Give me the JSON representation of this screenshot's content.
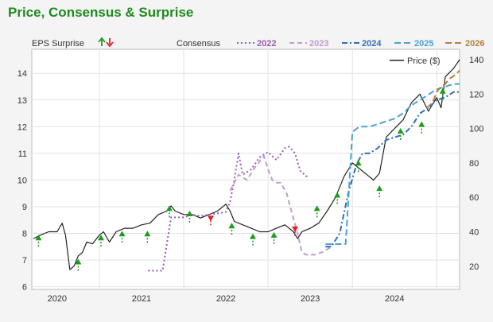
{
  "chart_data": {
    "type": "line",
    "title": "Price, Consensus & Surprise",
    "left_axis": {
      "label": "EPS Surprise",
      "ticks": [
        6,
        7,
        8,
        9,
        10,
        11,
        12,
        13,
        14
      ],
      "range": [
        5.9,
        14.9
      ]
    },
    "right_axis": {
      "ticks": [
        20,
        40,
        60,
        80,
        100,
        120,
        140
      ],
      "range": [
        6.5,
        146
      ]
    },
    "x_axis": {
      "ticks": [
        "2020",
        "2021",
        "2022",
        "2023",
        "2024"
      ],
      "range": [
        2019.7,
        2024.77
      ]
    },
    "legend": {
      "surprise_label": "EPS Surprise",
      "consensus_label": "Consensus",
      "price_label": "Price ($)",
      "consensus_years": [
        "2022",
        "2023",
        "2024",
        "2025",
        "2026"
      ]
    },
    "colors": {
      "price": "#222222",
      "c2022": "#9b59b6",
      "c2023": "#c39bd3",
      "c2024": "#2e6fb7",
      "c2025": "#4aa3d8",
      "c2026": "#b5813b",
      "beat": "#1e9a1e",
      "miss": "#e02020"
    },
    "series": [
      {
        "name": "Price ($)",
        "axis": "right",
        "x": [
          2019.72,
          2019.8,
          2019.9,
          2020.0,
          2020.06,
          2020.1,
          2020.15,
          2020.2,
          2020.25,
          2020.3,
          2020.35,
          2020.42,
          2020.5,
          2020.55,
          2020.62,
          2020.7,
          2020.8,
          2020.9,
          2021.0,
          2021.1,
          2021.2,
          2021.3,
          2021.35,
          2021.4,
          2021.5,
          2021.6,
          2021.7,
          2021.8,
          2021.9,
          2022.0,
          2022.05,
          2022.1,
          2022.2,
          2022.3,
          2022.4,
          2022.5,
          2022.6,
          2022.7,
          2022.8,
          2022.85,
          2022.9,
          2023.0,
          2023.1,
          2023.2,
          2023.3,
          2023.4,
          2023.5,
          2023.6,
          2023.7,
          2023.75,
          2023.82,
          2023.9,
          2024.0,
          2024.1,
          2024.2,
          2024.3,
          2024.4,
          2024.5,
          2024.55,
          2024.6,
          2024.7,
          2024.77
        ],
        "values": [
          36,
          38,
          40,
          40,
          45,
          38,
          18,
          20,
          26,
          28,
          34,
          33,
          38,
          40,
          34,
          40,
          42,
          42,
          44,
          45,
          50,
          52,
          55,
          52,
          50,
          50,
          48,
          50,
          52,
          56,
          52,
          46,
          44,
          42,
          40,
          40,
          42,
          44,
          40,
          36,
          40,
          42,
          45,
          52,
          60,
          72,
          80,
          76,
          72,
          70,
          74,
          95,
          100,
          105,
          115,
          120,
          110,
          118,
          112,
          130,
          135,
          140
        ]
      },
      {
        "name": "2022",
        "axis": "left",
        "x": [
          2021.08,
          2021.25,
          2021.28,
          2021.35,
          2021.5,
          2021.6,
          2021.7,
          2021.8,
          2021.9,
          2022.0,
          2022.05,
          2022.1,
          2022.15,
          2022.2,
          2022.3,
          2022.4,
          2022.5,
          2022.6,
          2022.7,
          2022.75,
          2022.82,
          2022.88,
          2022.95,
          2022.99
        ],
        "values": [
          6.6,
          6.6,
          7.2,
          8.6,
          8.6,
          8.7,
          8.65,
          8.7,
          8.75,
          8.8,
          9.2,
          10.0,
          11.0,
          10.2,
          10.4,
          10.85,
          11.05,
          10.75,
          11.2,
          11.25,
          11.0,
          10.35,
          10.15,
          10.1
        ]
      },
      {
        "name": "2023",
        "axis": "left",
        "x": [
          2022.05,
          2022.15,
          2022.25,
          2022.35,
          2022.45,
          2022.5,
          2022.55,
          2022.6,
          2022.65,
          2022.72,
          2022.78,
          2022.85,
          2022.9,
          2022.95,
          2023.05,
          2023.15,
          2023.25
        ],
        "values": [
          9.6,
          10.2,
          10.0,
          10.5,
          10.9,
          10.4,
          10.0,
          9.9,
          9.9,
          9.5,
          8.8,
          8.0,
          7.3,
          7.2,
          7.2,
          7.3,
          7.5
        ]
      },
      {
        "name": "2024",
        "axis": "left",
        "x": [
          2023.18,
          2023.25,
          2023.35,
          2023.45,
          2023.55,
          2023.62,
          2023.7,
          2023.8,
          2023.9,
          2024.0,
          2024.1,
          2024.2,
          2024.3,
          2024.4,
          2024.5,
          2024.6,
          2024.7,
          2024.77
        ],
        "values": [
          7.5,
          7.5,
          8.0,
          9.5,
          10.6,
          11.0,
          11.0,
          11.2,
          11.5,
          11.6,
          11.7,
          12.0,
          12.5,
          12.7,
          13.0,
          13.1,
          13.3,
          13.3
        ]
      },
      {
        "name": "2025",
        "axis": "left",
        "x": [
          2023.18,
          2023.42,
          2023.5,
          2023.58,
          2023.7,
          2023.8,
          2023.9,
          2024.0,
          2024.1,
          2024.2,
          2024.3,
          2024.4,
          2024.5,
          2024.6,
          2024.7,
          2024.77
        ],
        "values": [
          7.6,
          7.6,
          11.8,
          12.0,
          12.0,
          12.1,
          12.2,
          12.3,
          12.5,
          12.8,
          13.0,
          13.2,
          13.4,
          13.5,
          13.6,
          13.6
        ]
      },
      {
        "name": "2026",
        "axis": "left",
        "x": [
          2024.38,
          2024.45,
          2024.5,
          2024.55,
          2024.6,
          2024.65,
          2024.7,
          2024.77
        ],
        "values": [
          12.7,
          12.9,
          13.3,
          13.5,
          13.6,
          13.8,
          13.9,
          14.1
        ]
      }
    ],
    "surprises": [
      {
        "x": 2019.78,
        "eps": 7.8,
        "type": "beat"
      },
      {
        "x": 2020.25,
        "eps": 6.9,
        "type": "beat"
      },
      {
        "x": 2020.52,
        "eps": 7.8,
        "type": "beat"
      },
      {
        "x": 2020.77,
        "eps": 7.95,
        "type": "beat"
      },
      {
        "x": 2021.07,
        "eps": 7.95,
        "type": "beat"
      },
      {
        "x": 2021.33,
        "eps": 8.9,
        "type": "beat"
      },
      {
        "x": 2021.57,
        "eps": 8.7,
        "type": "beat"
      },
      {
        "x": 2021.82,
        "eps": 8.6,
        "type": "miss"
      },
      {
        "x": 2022.07,
        "eps": 8.25,
        "type": "beat"
      },
      {
        "x": 2022.32,
        "eps": 7.85,
        "type": "beat"
      },
      {
        "x": 2022.57,
        "eps": 7.9,
        "type": "beat"
      },
      {
        "x": 2022.82,
        "eps": 8.2,
        "type": "miss"
      },
      {
        "x": 2023.08,
        "eps": 8.9,
        "type": "beat"
      },
      {
        "x": 2023.32,
        "eps": 9.4,
        "type": "beat"
      },
      {
        "x": 2023.57,
        "eps": 10.6,
        "type": "beat"
      },
      {
        "x": 2023.82,
        "eps": 9.65,
        "type": "beat"
      },
      {
        "x": 2024.07,
        "eps": 11.8,
        "type": "beat"
      },
      {
        "x": 2024.32,
        "eps": 12.05,
        "type": "beat"
      },
      {
        "x": 2024.57,
        "eps": 13.3,
        "type": "beat"
      }
    ]
  }
}
